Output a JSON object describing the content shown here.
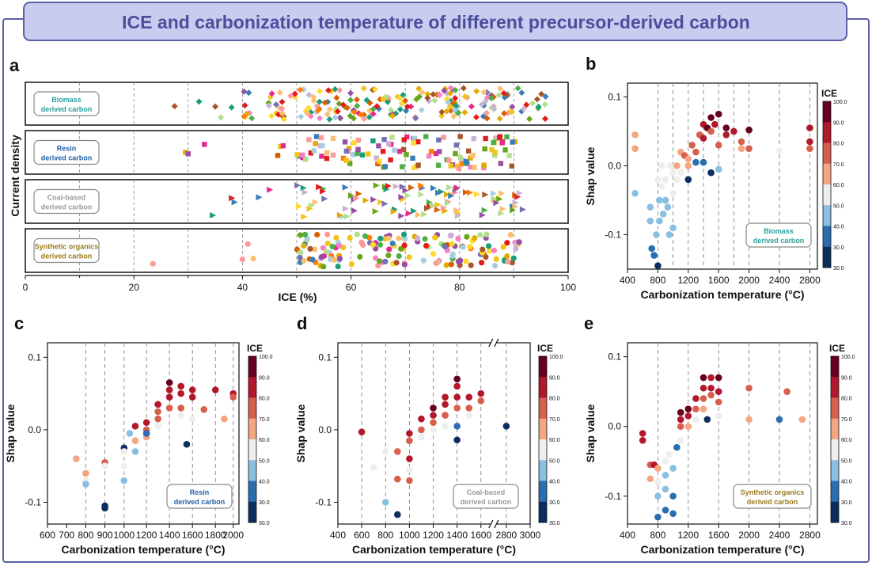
{
  "banner": {
    "title": "ICE and carbonization temperature of different precursor-derived carbon"
  },
  "colors": {
    "frame": "#5b5fa6",
    "banner_fill": "#c9cbef",
    "banner_text": "#4a4f9c",
    "biomass": "#2a9d9d",
    "resin": "#1f5fa8",
    "coal": "#9a9a9a",
    "synthetic": "#9a7a1a",
    "ice_bins": [
      "#0b2e5f",
      "#2a6db1",
      "#89bfe0",
      "#eeeeee",
      "#f4a582",
      "#d6604d",
      "#b2182b",
      "#67001f"
    ]
  },
  "colorbar": {
    "label": "ICE",
    "ticks": [
      "100.0",
      "90.0",
      "80.0",
      "70.0",
      "60.0",
      "50.0",
      "40.0",
      "30.0"
    ]
  },
  "panel_a": {
    "letter": "a",
    "xlabel": "ICE (%)",
    "ylabel": "Current density",
    "xticks": [
      "0",
      "20",
      "40",
      "60",
      "80",
      "100"
    ],
    "xlim": [
      0,
      100
    ],
    "strips": [
      {
        "key": "biomass",
        "label1": "Biomass",
        "label2": "derived carbon",
        "marker": "diamond",
        "min": 27,
        "max": 96,
        "n": 200,
        "outliers": [
          27.5,
          32,
          35,
          36,
          38
        ]
      },
      {
        "key": "resin",
        "label1": "Resin",
        "label2": "derived carbon",
        "marker": "square",
        "min": 29,
        "max": 91,
        "n": 110,
        "outliers": [
          29.5,
          30,
          33,
          46.5,
          47,
          47.5
        ]
      },
      {
        "key": "coal",
        "label1": "Coal-based",
        "label2": "derived carbon",
        "marker": "triangle",
        "min": 34,
        "max": 94,
        "n": 95,
        "outliers": [
          34.5,
          38,
          38.5,
          43,
          45
        ]
      },
      {
        "key": "synthetic",
        "label1": "Synthetic organics",
        "label2": "derived carbon",
        "marker": "circle",
        "min": 23,
        "max": 91,
        "n": 150,
        "outliers": [
          23.5,
          40,
          41,
          42
        ]
      }
    ]
  },
  "panel_b": {
    "letter": "b",
    "ylabel": "Shap value",
    "xlabel": "Carbonization temperature (°C)",
    "xticks": [
      "400",
      "800",
      "1200",
      "1600",
      "2000",
      "2400",
      "2800"
    ],
    "yticks": [
      "0.1",
      "0.0",
      "-0.1"
    ],
    "legend1": "Biomass",
    "legend2": "derived carbon"
  },
  "panel_c": {
    "letter": "c",
    "ylabel": "Shap value",
    "xlabel": "Carbonization temperature (°C)",
    "xticks": [
      "600",
      "700",
      "800",
      "900",
      "1000",
      "1200",
      "1400",
      "1600",
      "1800",
      "2000"
    ],
    "yticks": [
      "0.1",
      "0.0",
      "-0.1"
    ],
    "legend1": "Resin",
    "legend2": "derived carbon"
  },
  "panel_d": {
    "letter": "d",
    "ylabel": "Shap value",
    "xlabel": "Carbonization temperature (°C)",
    "xticks": [
      "400",
      "600",
      "800",
      "1000",
      "1200",
      "1400",
      "1600",
      "2800",
      "3000"
    ],
    "yticks": [
      "0.1",
      "0.0",
      "-0.1"
    ],
    "legend1": "Coal-based",
    "legend2": "derived carbon"
  },
  "panel_e": {
    "letter": "e",
    "ylabel": "Shap value",
    "xlabel": "Carbonization temperature (°C)",
    "xticks": [
      "400",
      "800",
      "1200",
      "1600",
      "2000",
      "2400",
      "2800"
    ],
    "yticks": [
      "0.1",
      "0.0",
      "-0.1"
    ],
    "legend1": "Synthetic organics",
    "legend2": "derived carbon"
  },
  "chart_data": [
    {
      "type": "scatter",
      "panel": "a",
      "xlabel": "ICE (%)",
      "ylabel": "Current density",
      "xlim": [
        0,
        100
      ],
      "series": [
        {
          "name": "Biomass derived carbon",
          "x": [
            27.5,
            32,
            35,
            36,
            38,
            40,
            43,
            47,
            52,
            56,
            60,
            63,
            67,
            71,
            75,
            78,
            82,
            86,
            90,
            93,
            96
          ]
        },
        {
          "name": "Resin derived carbon",
          "x": [
            29.5,
            30,
            33,
            46.5,
            47,
            51,
            55,
            59,
            62,
            66,
            70,
            74,
            77,
            81,
            85,
            88,
            91
          ]
        },
        {
          "name": "Coal-based derived carbon",
          "x": [
            34.5,
            38,
            38.5,
            43,
            45,
            51,
            55,
            60,
            64,
            68,
            72,
            76,
            80,
            84,
            88,
            94
          ]
        },
        {
          "name": "Synthetic organics derived carbon",
          "x": [
            23.5,
            40,
            41,
            42,
            46,
            50,
            54,
            58,
            62,
            66,
            70,
            74,
            78,
            82,
            86,
            91
          ]
        }
      ]
    },
    {
      "type": "scatter",
      "panel": "b",
      "xlabel": "Carbonization temperature (°C)",
      "ylabel": "Shap value",
      "xlim": [
        400,
        2900
      ],
      "ylim": [
        -0.15,
        0.12
      ],
      "points": [
        [
          500,
          0.045,
          70
        ],
        [
          500,
          0.025,
          65
        ],
        [
          500,
          -0.04,
          55
        ],
        [
          700,
          -0.06,
          48
        ],
        [
          700,
          -0.08,
          52
        ],
        [
          720,
          -0.12,
          45
        ],
        [
          750,
          -0.13,
          40
        ],
        [
          780,
          -0.1,
          50
        ],
        [
          800,
          -0.145,
          38
        ],
        [
          800,
          -0.02,
          58
        ],
        [
          820,
          -0.05,
          55
        ],
        [
          820,
          -0.08,
          52
        ],
        [
          850,
          0.0,
          62
        ],
        [
          850,
          -0.03,
          58
        ],
        [
          870,
          -0.07,
          54
        ],
        [
          900,
          -0.05,
          50
        ],
        [
          900,
          -0.02,
          60
        ],
        [
          930,
          -0.06,
          56
        ],
        [
          950,
          -0.1,
          48
        ],
        [
          960,
          0.0,
          62
        ],
        [
          1000,
          -0.09,
          52
        ],
        [
          1000,
          -0.04,
          58
        ],
        [
          1000,
          -0.01,
          64
        ],
        [
          1050,
          0.0,
          68
        ],
        [
          1050,
          -0.02,
          58
        ],
        [
          1100,
          0.02,
          70
        ],
        [
          1100,
          -0.01,
          60
        ],
        [
          1150,
          0.015,
          75
        ],
        [
          1200,
          0.01,
          72
        ],
        [
          1200,
          0.0,
          66
        ],
        [
          1200,
          -0.02,
          38
        ],
        [
          1250,
          0.03,
          80
        ],
        [
          1300,
          0.02,
          76
        ],
        [
          1300,
          0.005,
          44
        ],
        [
          1350,
          0.045,
          82
        ],
        [
          1400,
          0.06,
          88
        ],
        [
          1400,
          0.04,
          84
        ],
        [
          1400,
          0.005,
          40
        ],
        [
          1450,
          0.055,
          95
        ],
        [
          1500,
          0.07,
          96
        ],
        [
          1500,
          0.05,
          80
        ],
        [
          1500,
          -0.01,
          35
        ],
        [
          1550,
          0.06,
          90
        ],
        [
          1600,
          0.075,
          92
        ],
        [
          1600,
          0.03,
          74
        ],
        [
          1600,
          -0.005,
          55
        ],
        [
          1700,
          0.055,
          95
        ],
        [
          1700,
          0.045,
          88
        ],
        [
          1800,
          0.05,
          88
        ],
        [
          1900,
          0.035,
          74
        ],
        [
          1900,
          0.025,
          68
        ],
        [
          2000,
          0.052,
          98
        ],
        [
          2000,
          0.025,
          80
        ],
        [
          2400,
          0.022,
          58
        ],
        [
          2800,
          0.055,
          88
        ],
        [
          2800,
          0.035,
          84
        ],
        [
          2800,
          0.025,
          78
        ]
      ]
    },
    {
      "type": "scatter",
      "panel": "c",
      "xlabel": "Carbonization temperature (°C)",
      "ylabel": "Shap value",
      "xlim": [
        600,
        2100
      ],
      "ylim": [
        -0.13,
        0.12
      ],
      "points": [
        [
          750,
          -0.04,
          72
        ],
        [
          800,
          -0.06,
          66
        ],
        [
          800,
          -0.07,
          58
        ],
        [
          800,
          -0.075,
          52
        ],
        [
          900,
          -0.045,
          74
        ],
        [
          900,
          -0.05,
          62
        ],
        [
          900,
          -0.105,
          38
        ],
        [
          900,
          -0.108,
          34
        ],
        [
          1000,
          -0.025,
          38
        ],
        [
          1000,
          -0.03,
          64
        ],
        [
          1000,
          -0.05,
          58
        ],
        [
          1000,
          -0.07,
          56
        ],
        [
          1050,
          -0.005,
          56
        ],
        [
          1100,
          0.005,
          88
        ],
        [
          1100,
          -0.015,
          66
        ],
        [
          1100,
          -0.03,
          56
        ],
        [
          1200,
          0.01,
          88
        ],
        [
          1200,
          0.0,
          80
        ],
        [
          1200,
          -0.01,
          70
        ],
        [
          1200,
          -0.005,
          45
        ],
        [
          1300,
          0.035,
          88
        ],
        [
          1300,
          0.025,
          82
        ],
        [
          1300,
          0.015,
          74
        ],
        [
          1300,
          0.005,
          60
        ],
        [
          1400,
          0.065,
          98
        ],
        [
          1400,
          0.055,
          90
        ],
        [
          1400,
          0.045,
          84
        ],
        [
          1400,
          0.03,
          76
        ],
        [
          1500,
          0.06,
          88
        ],
        [
          1500,
          0.05,
          84
        ],
        [
          1500,
          0.03,
          74
        ],
        [
          1500,
          0.02,
          62
        ],
        [
          1550,
          -0.02,
          38
        ],
        [
          1600,
          0.055,
          88
        ],
        [
          1600,
          0.045,
          84
        ],
        [
          1600,
          0.015,
          58
        ],
        [
          1700,
          0.028,
          76
        ],
        [
          1800,
          0.055,
          88
        ],
        [
          1900,
          0.015,
          65
        ],
        [
          2000,
          0.05,
          90
        ],
        [
          2000,
          0.045,
          78
        ]
      ]
    },
    {
      "type": "scatter",
      "panel": "d",
      "xlabel": "Carbonization temperature (°C)",
      "ylabel": "Shap value",
      "xlim": [
        400,
        3000
      ],
      "ylim": [
        -0.13,
        0.12
      ],
      "points": [
        [
          600,
          -0.003,
          88
        ],
        [
          700,
          -0.052,
          58
        ],
        [
          800,
          -0.03,
          58
        ],
        [
          800,
          -0.1,
          55
        ],
        [
          900,
          -0.03,
          78
        ],
        [
          900,
          -0.068,
          76
        ],
        [
          900,
          -0.117,
          34
        ],
        [
          1000,
          -0.005,
          90
        ],
        [
          1000,
          -0.015,
          80
        ],
        [
          1000,
          -0.04,
          86
        ],
        [
          1000,
          -0.055,
          64
        ],
        [
          1000,
          -0.07,
          74
        ],
        [
          1100,
          0.015,
          90
        ],
        [
          1100,
          0.0,
          76
        ],
        [
          1100,
          -0.01,
          62
        ],
        [
          1200,
          0.03,
          98
        ],
        [
          1200,
          0.02,
          88
        ],
        [
          1200,
          0.01,
          78
        ],
        [
          1200,
          0.0,
          64
        ],
        [
          1300,
          0.045,
          90
        ],
        [
          1300,
          0.035,
          84
        ],
        [
          1300,
          0.02,
          76
        ],
        [
          1300,
          0.005,
          58
        ],
        [
          1400,
          0.07,
          98
        ],
        [
          1400,
          0.06,
          90
        ],
        [
          1400,
          0.045,
          84
        ],
        [
          1400,
          0.03,
          76
        ],
        [
          1400,
          0.005,
          44
        ],
        [
          1400,
          -0.014,
          32
        ],
        [
          1500,
          0.045,
          90
        ],
        [
          1500,
          0.03,
          78
        ],
        [
          1500,
          0.02,
          60
        ],
        [
          1600,
          0.05,
          88
        ],
        [
          1600,
          0.04,
          78
        ],
        [
          2800,
          0.005,
          38
        ]
      ]
    },
    {
      "type": "scatter",
      "panel": "e",
      "xlabel": "Carbonization temperature (°C)",
      "ylabel": "Shap value",
      "xlim": [
        400,
        2900
      ],
      "ylim": [
        -0.14,
        0.12
      ],
      "points": [
        [
          600,
          -0.01,
          90
        ],
        [
          600,
          -0.02,
          84
        ],
        [
          700,
          -0.055,
          78
        ],
        [
          700,
          -0.075,
          72
        ],
        [
          750,
          -0.055,
          84
        ],
        [
          800,
          -0.06,
          70
        ],
        [
          800,
          -0.08,
          62
        ],
        [
          800,
          -0.1,
          56
        ],
        [
          800,
          -0.13,
          42
        ],
        [
          900,
          -0.05,
          60
        ],
        [
          900,
          -0.07,
          56
        ],
        [
          900,
          -0.09,
          52
        ],
        [
          900,
          -0.12,
          44
        ],
        [
          950,
          -0.04,
          58
        ],
        [
          1000,
          -0.06,
          52
        ],
        [
          1000,
          -0.1,
          46
        ],
        [
          1000,
          -0.125,
          40
        ],
        [
          1050,
          -0.03,
          46
        ],
        [
          1100,
          0.02,
          98
        ],
        [
          1100,
          0.01,
          88
        ],
        [
          1100,
          0.0,
          74
        ],
        [
          1100,
          -0.02,
          58
        ],
        [
          1200,
          0.025,
          96
        ],
        [
          1200,
          0.015,
          84
        ],
        [
          1200,
          0.0,
          70
        ],
        [
          1300,
          0.04,
          90
        ],
        [
          1300,
          0.025,
          80
        ],
        [
          1300,
          0.01,
          60
        ],
        [
          1400,
          0.07,
          96
        ],
        [
          1400,
          0.055,
          88
        ],
        [
          1400,
          0.04,
          80
        ],
        [
          1400,
          0.025,
          72
        ],
        [
          1450,
          0.01,
          36
        ],
        [
          1500,
          0.07,
          90
        ],
        [
          1500,
          0.055,
          84
        ],
        [
          1500,
          0.045,
          78
        ],
        [
          1600,
          0.07,
          92
        ],
        [
          1600,
          0.05,
          84
        ],
        [
          1600,
          0.035,
          76
        ],
        [
          1600,
          0.015,
          60
        ],
        [
          2000,
          0.055,
          78
        ],
        [
          2000,
          0.01,
          66
        ],
        [
          2400,
          0.01,
          44
        ],
        [
          2500,
          0.05,
          76
        ],
        [
          2700,
          0.01,
          66
        ]
      ]
    }
  ]
}
